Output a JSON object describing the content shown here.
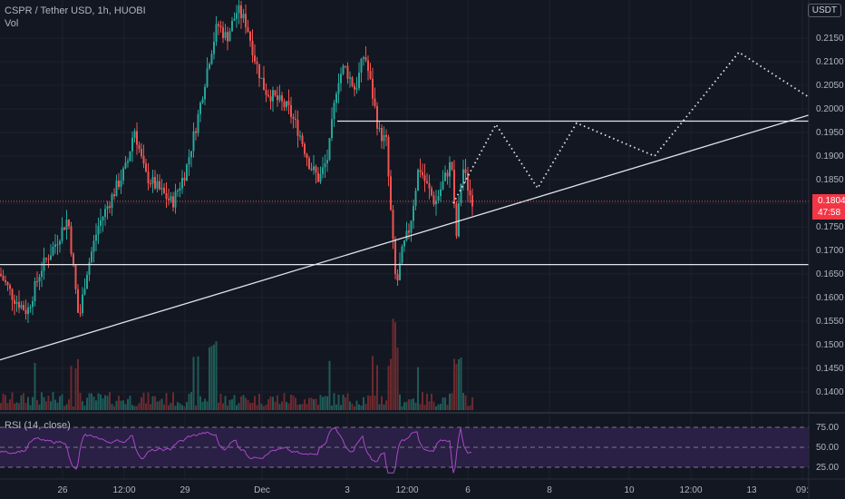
{
  "header": {
    "symbol": "CSPR / Tether USD, 1h, HUOBI",
    "volume_label": "Vol",
    "currency": "USDT"
  },
  "indicators": {
    "rsi_label": "RSI (14, close)",
    "rsi_levels": [
      75,
      50,
      25
    ]
  },
  "last_price": {
    "value": "0.1804",
    "countdown": "47:58",
    "color": "#f23645"
  },
  "colors": {
    "background": "#131722",
    "up": "#26a69a",
    "down": "#ef5350",
    "rsi_line": "#a94ac9",
    "rsi_band": "#2a1f45"
  },
  "chart_data": {
    "type": "candlestick",
    "y_axis_ticks": [
      "0.2150",
      "0.2100",
      "0.2050",
      "0.2000",
      "0.1950",
      "0.1900",
      "0.1850",
      "0.1800",
      "0.1750",
      "0.1700",
      "0.1650",
      "0.1600",
      "0.1550",
      "0.1500",
      "0.1450",
      "0.1400"
    ],
    "x_axis_ticks": [
      "26",
      "12:00",
      "29",
      "Dec",
      "3",
      "12:00",
      "6",
      "8",
      "10",
      "12:00",
      "13",
      "09:"
    ],
    "ylim": [
      0.1375,
      0.2185
    ],
    "horizontal_levels": [
      0.1974,
      0.167
    ],
    "trendline": {
      "from": [
        0,
        0.1468
      ],
      "to": [
        932,
        0.201
      ]
    },
    "projection_path": [
      [
        0.18,
        0.1835
      ],
      [
        0.1967,
        0.1966
      ],
      [
        0.1832,
        0.1833
      ],
      [
        0.197,
        0.197
      ],
      [
        0.19,
        0.19
      ],
      [
        0.212,
        0.212
      ],
      [
        0.2025,
        0.2025
      ]
    ]
  }
}
